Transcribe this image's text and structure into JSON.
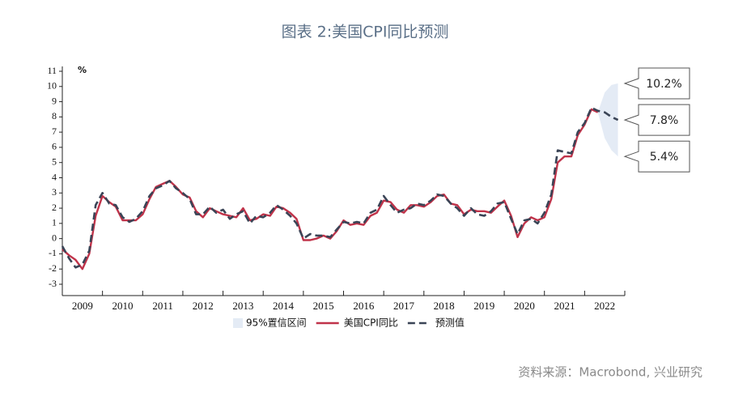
{
  "chart_data": {
    "type": "line",
    "title": "图表 2:美国CPI同比预测",
    "source": "资料来源：Macrobond, 兴业研究",
    "ylabel": "%",
    "xlim": [
      2009,
      2023
    ],
    "xticks": [
      2009,
      2010,
      2011,
      2012,
      2013,
      2014,
      2015,
      2016,
      2017,
      2018,
      2019,
      2020,
      2021,
      2022
    ],
    "ylim": [
      -3,
      11
    ],
    "yticks": [
      -3,
      -2,
      -1,
      0,
      1,
      2,
      3,
      4,
      5,
      6,
      7,
      8,
      9,
      10,
      11
    ],
    "x": [
      2009.0,
      2009.17,
      2009.33,
      2009.5,
      2009.67,
      2009.83,
      2010.0,
      2010.17,
      2010.33,
      2010.5,
      2010.67,
      2010.83,
      2011.0,
      2011.17,
      2011.33,
      2011.5,
      2011.67,
      2011.83,
      2012.0,
      2012.17,
      2012.33,
      2012.5,
      2012.67,
      2012.83,
      2013.0,
      2013.17,
      2013.33,
      2013.5,
      2013.67,
      2013.83,
      2014.0,
      2014.17,
      2014.33,
      2014.5,
      2014.67,
      2014.83,
      2015.0,
      2015.17,
      2015.33,
      2015.5,
      2015.67,
      2015.83,
      2016.0,
      2016.17,
      2016.33,
      2016.5,
      2016.67,
      2016.83,
      2017.0,
      2017.17,
      2017.33,
      2017.5,
      2017.67,
      2017.83,
      2018.0,
      2018.17,
      2018.33,
      2018.5,
      2018.67,
      2018.83,
      2019.0,
      2019.17,
      2019.33,
      2019.5,
      2019.67,
      2019.83,
      2020.0,
      2020.17,
      2020.33,
      2020.5,
      2020.67,
      2020.83,
      2021.0,
      2021.17,
      2021.33,
      2021.5,
      2021.67,
      2021.83,
      2022.0,
      2022.17,
      2022.33,
      2022.5,
      2022.67,
      2022.83
    ],
    "band": {
      "name": "95%置信区间",
      "color": "#e4ebf5",
      "upper": [
        null,
        null,
        null,
        null,
        null,
        null,
        null,
        null,
        null,
        null,
        null,
        null,
        null,
        null,
        null,
        null,
        null,
        null,
        null,
        null,
        null,
        null,
        null,
        null,
        null,
        null,
        null,
        null,
        null,
        null,
        null,
        null,
        null,
        null,
        null,
        null,
        null,
        null,
        null,
        null,
        null,
        null,
        null,
        null,
        null,
        null,
        null,
        null,
        null,
        null,
        null,
        null,
        null,
        null,
        null,
        null,
        null,
        null,
        null,
        null,
        null,
        null,
        null,
        null,
        null,
        null,
        null,
        null,
        null,
        null,
        null,
        null,
        null,
        null,
        null,
        null,
        null,
        null,
        null,
        null,
        8.3,
        9.6,
        10.1,
        10.2
      ],
      "lower": [
        null,
        null,
        null,
        null,
        null,
        null,
        null,
        null,
        null,
        null,
        null,
        null,
        null,
        null,
        null,
        null,
        null,
        null,
        null,
        null,
        null,
        null,
        null,
        null,
        null,
        null,
        null,
        null,
        null,
        null,
        null,
        null,
        null,
        null,
        null,
        null,
        null,
        null,
        null,
        null,
        null,
        null,
        null,
        null,
        null,
        null,
        null,
        null,
        null,
        null,
        null,
        null,
        null,
        null,
        null,
        null,
        null,
        null,
        null,
        null,
        null,
        null,
        null,
        null,
        null,
        null,
        null,
        null,
        null,
        null,
        null,
        null,
        null,
        null,
        null,
        null,
        null,
        null,
        null,
        null,
        8.3,
        6.6,
        5.8,
        5.4
      ]
    },
    "series": [
      {
        "name": "美国CPI同比",
        "color": "#c0334a",
        "dash": false,
        "values": [
          -0.7,
          -1.1,
          -1.4,
          -2.0,
          -1.0,
          1.5,
          2.8,
          2.4,
          2.1,
          1.2,
          1.2,
          1.2,
          1.6,
          2.6,
          3.4,
          3.6,
          3.8,
          3.4,
          2.9,
          2.7,
          1.8,
          1.4,
          2.0,
          1.8,
          1.6,
          1.5,
          1.4,
          2.0,
          1.2,
          1.3,
          1.6,
          1.5,
          2.1,
          2.0,
          1.7,
          1.3,
          -0.1,
          -0.1,
          0.0,
          0.2,
          0.0,
          0.5,
          1.2,
          0.9,
          1.0,
          0.9,
          1.5,
          1.7,
          2.5,
          2.4,
          1.9,
          1.7,
          2.2,
          2.2,
          2.1,
          2.4,
          2.8,
          2.9,
          2.3,
          2.2,
          1.6,
          1.9,
          1.8,
          1.8,
          1.7,
          2.1,
          2.5,
          1.5,
          0.1,
          1.0,
          1.4,
          1.2,
          1.4,
          2.6,
          5.0,
          5.4,
          5.4,
          6.8,
          7.5,
          8.5,
          8.3,
          null,
          null,
          null
        ]
      },
      {
        "name": "预测值",
        "color": "#3a4456",
        "dash": true,
        "values": [
          -0.5,
          -1.3,
          -1.9,
          -1.7,
          -0.8,
          2.2,
          3.0,
          2.3,
          2.2,
          1.4,
          1.1,
          1.3,
          1.8,
          2.8,
          3.3,
          3.5,
          3.8,
          3.3,
          3.0,
          2.6,
          1.6,
          1.6,
          2.1,
          1.7,
          1.9,
          1.3,
          1.6,
          1.8,
          1.0,
          1.5,
          1.4,
          1.7,
          2.2,
          1.9,
          1.5,
          1.0,
          0.0,
          0.3,
          0.2,
          0.2,
          0.1,
          0.6,
          1.1,
          1.0,
          1.1,
          1.0,
          1.7,
          1.9,
          2.8,
          2.2,
          1.7,
          1.9,
          2.0,
          2.3,
          2.2,
          2.5,
          2.9,
          2.8,
          2.3,
          2.0,
          1.5,
          2.0,
          1.6,
          1.5,
          1.8,
          2.3,
          2.4,
          1.3,
          0.3,
          1.2,
          1.3,
          1.0,
          1.7,
          2.9,
          5.8,
          5.7,
          5.6,
          7.0,
          7.6,
          8.6,
          8.4,
          8.3,
          8.0,
          7.8
        ]
      }
    ],
    "annotations": [
      {
        "text": "10.2%",
        "value": 10.2
      },
      {
        "text": "7.8%",
        "value": 7.8
      },
      {
        "text": "5.4%",
        "value": 5.4
      }
    ]
  }
}
